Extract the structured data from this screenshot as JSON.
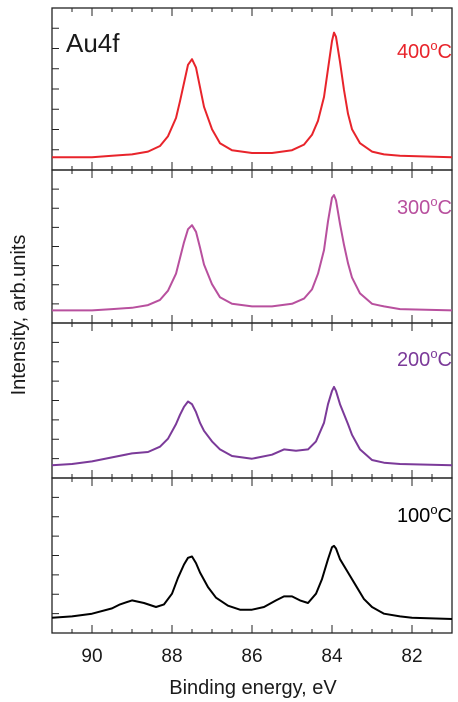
{
  "chart_data": {
    "type": "line",
    "layout": "stacked-panels",
    "element_label": "Au4f",
    "xlabel": "Binding energy, eV",
    "ylabel": "Intensity, arb.units",
    "x_ticks": [
      90,
      88,
      86,
      84,
      82
    ],
    "xlim": [
      91,
      81
    ],
    "x_reversed": true,
    "grid": false,
    "panels": [
      {
        "label": "400",
        "unit_sup": "o",
        "unit": "C",
        "color": "#e8242b",
        "ylim": [
          0,
          1.0
        ],
        "series": {
          "x": [
            91.0,
            90.0,
            89.5,
            89.0,
            88.6,
            88.3,
            88.1,
            87.9,
            87.8,
            87.7,
            87.6,
            87.5,
            87.4,
            87.3,
            87.2,
            87.0,
            86.8,
            86.5,
            86.0,
            85.5,
            85.0,
            84.7,
            84.5,
            84.35,
            84.2,
            84.1,
            84.0,
            83.95,
            83.9,
            83.8,
            83.7,
            83.6,
            83.5,
            83.3,
            83.0,
            82.7,
            82.3,
            81.0
          ],
          "y": [
            0.02,
            0.02,
            0.03,
            0.04,
            0.06,
            0.1,
            0.17,
            0.3,
            0.42,
            0.55,
            0.68,
            0.72,
            0.66,
            0.52,
            0.38,
            0.22,
            0.12,
            0.07,
            0.05,
            0.05,
            0.07,
            0.11,
            0.18,
            0.28,
            0.45,
            0.65,
            0.85,
            0.91,
            0.88,
            0.7,
            0.5,
            0.33,
            0.22,
            0.12,
            0.06,
            0.04,
            0.03,
            0.02
          ]
        }
      },
      {
        "label": "300",
        "unit_sup": "o",
        "unit": "C",
        "color": "#b8509e",
        "ylim": [
          0,
          1.0
        ],
        "series": {
          "x": [
            91.0,
            90.0,
            89.5,
            89.0,
            88.6,
            88.3,
            88.1,
            87.9,
            87.8,
            87.7,
            87.6,
            87.5,
            87.4,
            87.3,
            87.2,
            87.0,
            86.8,
            86.5,
            86.0,
            85.5,
            85.0,
            84.7,
            84.5,
            84.35,
            84.2,
            84.1,
            84.0,
            83.95,
            83.9,
            83.8,
            83.7,
            83.6,
            83.5,
            83.3,
            83.0,
            82.7,
            82.3,
            81.0
          ],
          "y": [
            0.02,
            0.02,
            0.03,
            0.04,
            0.06,
            0.1,
            0.17,
            0.3,
            0.42,
            0.54,
            0.64,
            0.67,
            0.62,
            0.5,
            0.37,
            0.22,
            0.12,
            0.07,
            0.05,
            0.05,
            0.07,
            0.11,
            0.18,
            0.3,
            0.48,
            0.7,
            0.88,
            0.9,
            0.86,
            0.68,
            0.52,
            0.38,
            0.27,
            0.15,
            0.07,
            0.05,
            0.03,
            0.02
          ]
        }
      },
      {
        "label": "200",
        "unit_sup": "o",
        "unit": "C",
        "color": "#7b3a99",
        "ylim": [
          0,
          1.0
        ],
        "series": {
          "x": [
            91.0,
            90.5,
            90.0,
            89.5,
            89.0,
            88.6,
            88.3,
            88.1,
            87.9,
            87.8,
            87.7,
            87.6,
            87.5,
            87.4,
            87.3,
            87.2,
            87.0,
            86.8,
            86.5,
            86.0,
            85.5,
            85.2,
            84.9,
            84.6,
            84.4,
            84.2,
            84.1,
            84.0,
            83.95,
            83.9,
            83.8,
            83.6,
            83.5,
            83.3,
            83.0,
            82.7,
            82.3,
            81.0
          ],
          "y": [
            0.02,
            0.03,
            0.05,
            0.08,
            0.11,
            0.12,
            0.16,
            0.22,
            0.33,
            0.4,
            0.46,
            0.5,
            0.48,
            0.42,
            0.34,
            0.28,
            0.2,
            0.14,
            0.09,
            0.07,
            0.1,
            0.14,
            0.13,
            0.14,
            0.2,
            0.34,
            0.48,
            0.58,
            0.61,
            0.58,
            0.48,
            0.33,
            0.25,
            0.14,
            0.06,
            0.04,
            0.03,
            0.02
          ]
        }
      },
      {
        "label": "100",
        "unit_sup": "o",
        "unit": "C",
        "color": "#000000",
        "ylim": [
          0,
          1.0
        ],
        "series": {
          "x": [
            91.0,
            90.5,
            90.0,
            89.5,
            89.3,
            89.0,
            88.7,
            88.4,
            88.2,
            88.0,
            87.85,
            87.7,
            87.6,
            87.5,
            87.4,
            87.3,
            87.1,
            86.9,
            86.6,
            86.3,
            86.0,
            85.7,
            85.4,
            85.2,
            85.0,
            84.8,
            84.6,
            84.4,
            84.25,
            84.1,
            84.0,
            83.95,
            83.9,
            83.8,
            83.6,
            83.4,
            83.2,
            83.0,
            82.7,
            82.3,
            82.0,
            81.0
          ],
          "y": [
            0.04,
            0.05,
            0.07,
            0.11,
            0.14,
            0.17,
            0.15,
            0.12,
            0.14,
            0.22,
            0.34,
            0.44,
            0.49,
            0.5,
            0.45,
            0.38,
            0.27,
            0.19,
            0.13,
            0.1,
            0.1,
            0.12,
            0.17,
            0.2,
            0.2,
            0.17,
            0.15,
            0.22,
            0.33,
            0.48,
            0.57,
            0.58,
            0.56,
            0.48,
            0.38,
            0.28,
            0.18,
            0.12,
            0.07,
            0.05,
            0.04,
            0.03
          ]
        }
      }
    ]
  }
}
